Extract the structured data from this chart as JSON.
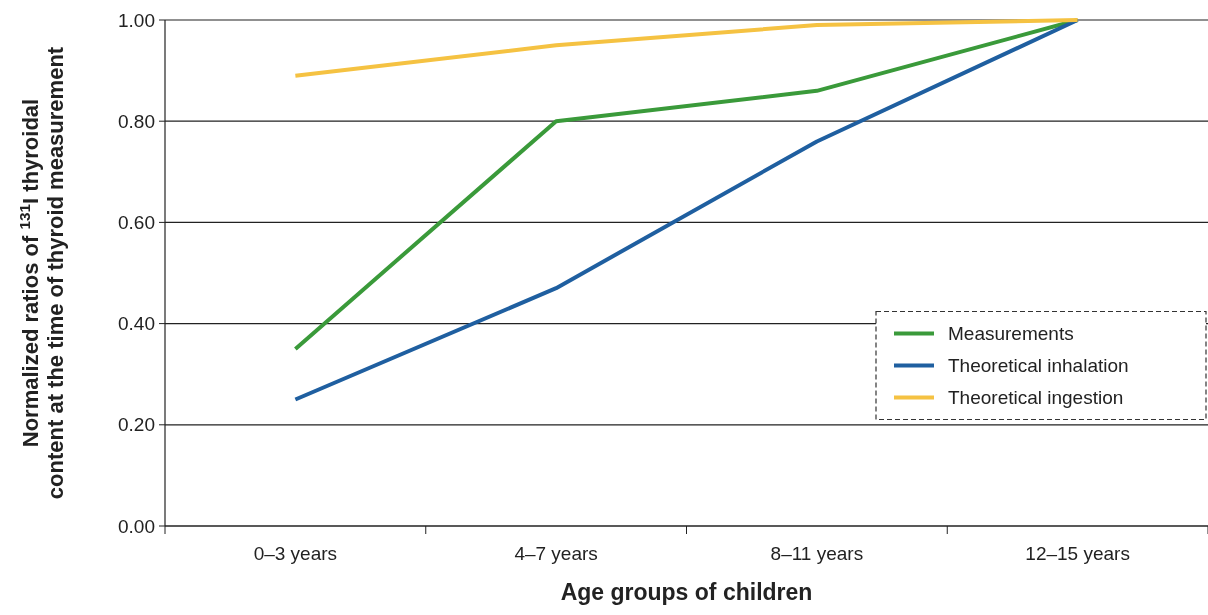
{
  "chart_data": {
    "type": "line",
    "xlabel": "Age groups of children",
    "ylabel": "Normalized ratios of $^{131}$I thyroidal content at the time of thyroid measurement",
    "categories": [
      "0–3 years",
      "4–7 years",
      "8–11 years",
      "12–15 years"
    ],
    "series": [
      {
        "name": "Measurements",
        "color": "#3a9a3a",
        "values": [
          0.35,
          0.8,
          0.86,
          1.0
        ]
      },
      {
        "name": "Theoretical inhalation",
        "color": "#1f5fa0",
        "values": [
          0.25,
          0.47,
          0.76,
          1.0
        ]
      },
      {
        "name": "Theoretical ingestion",
        "color": "#f5c242",
        "values": [
          0.89,
          0.95,
          0.99,
          1.0
        ]
      }
    ],
    "ylim": [
      0,
      1
    ],
    "yticks": [
      {
        "value": 0,
        "label": "0.00"
      },
      {
        "value": 0.2,
        "label": "0.20"
      },
      {
        "value": 0.4,
        "label": "0.40"
      },
      {
        "value": 0.6,
        "label": "0.60"
      },
      {
        "value": 0.8,
        "label": "0.80"
      },
      {
        "value": 1,
        "label": "1.00"
      }
    ],
    "grid": "y",
    "legend": "bottom right",
    "marker": "none",
    "line_style": "solid"
  }
}
